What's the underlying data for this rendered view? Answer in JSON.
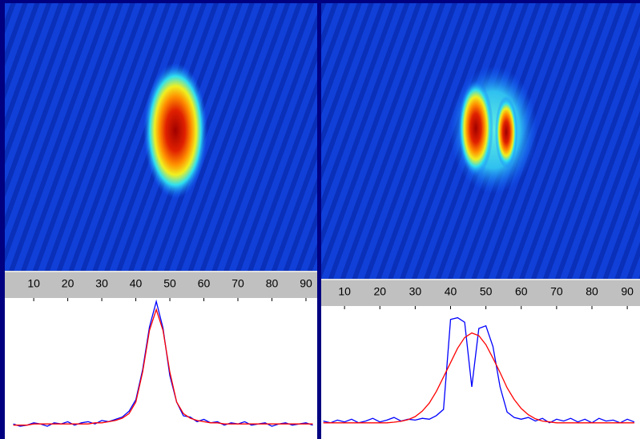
{
  "chart_data": [
    {
      "type": "line",
      "x": [
        4,
        6,
        8,
        10,
        12,
        14,
        16,
        18,
        20,
        22,
        24,
        26,
        28,
        30,
        32,
        34,
        36,
        38,
        40,
        42,
        44,
        46,
        48,
        50,
        52,
        54,
        56,
        58,
        60,
        62,
        64,
        66,
        68,
        70,
        72,
        74,
        76,
        78,
        80,
        82,
        84,
        86,
        88,
        90,
        92
      ],
      "series": [
        {
          "color": "#0000ff",
          "values": [
            0.01,
            -0.01,
            0,
            0.02,
            0.01,
            -0.01,
            0.02,
            0.01,
            0.03,
            0,
            0.02,
            0.03,
            0.01,
            0.04,
            0.03,
            0.05,
            0.07,
            0.12,
            0.22,
            0.48,
            0.85,
            1.07,
            0.84,
            0.43,
            0.2,
            0.08,
            0.07,
            0.03,
            0.05,
            0.02,
            0.03,
            0,
            0.02,
            0.01,
            0.03,
            0,
            0.01,
            0.02,
            -0.01,
            0.01,
            0.02,
            0,
            0.01,
            0.02,
            0
          ]
        },
        {
          "color": "#ff0000",
          "values": [
            0,
            0,
            0,
            0.01,
            0.01,
            0.01,
            0.01,
            0.01,
            0.01,
            0.01,
            0.01,
            0.01,
            0.02,
            0.02,
            0.03,
            0.04,
            0.06,
            0.1,
            0.2,
            0.46,
            0.82,
            1.0,
            0.82,
            0.46,
            0.2,
            0.1,
            0.06,
            0.04,
            0.03,
            0.02,
            0.02,
            0.01,
            0.01,
            0.01,
            0.01,
            0.01,
            0.01,
            0.01,
            0.01,
            0.01,
            0.01,
            0.01,
            0.01,
            0.01,
            0.01
          ]
        }
      ],
      "xlim": [
        1.5,
        93.3
      ],
      "xticks": [
        10,
        20,
        30,
        40,
        50,
        60,
        70,
        80,
        90
      ],
      "ylim": [
        -0.12,
        1.1
      ]
    },
    {
      "type": "line",
      "x": [
        4,
        6,
        8,
        10,
        12,
        14,
        16,
        18,
        20,
        22,
        24,
        26,
        28,
        30,
        32,
        34,
        36,
        38,
        40,
        42,
        44,
        46,
        48,
        50,
        52,
        54,
        56,
        58,
        60,
        62,
        64,
        66,
        68,
        70,
        72,
        74,
        76,
        78,
        80,
        82,
        84,
        86,
        88,
        90,
        92
      ],
      "series": [
        {
          "color": "#0000ff",
          "values": [
            0.02,
            0,
            0.03,
            0.01,
            0.04,
            0,
            0.02,
            0.05,
            0.01,
            0.03,
            0.06,
            0.02,
            0.04,
            0.03,
            0.05,
            0.04,
            0.08,
            0.15,
            1.15,
            1.17,
            1.12,
            0.4,
            1.05,
            1.08,
            0.85,
            0.4,
            0.12,
            0.06,
            0.04,
            0.06,
            0.02,
            0.05,
            0,
            0.04,
            0.02,
            0.05,
            0.01,
            0.04,
            0,
            0.05,
            0.02,
            0.03,
            0,
            0.04,
            0.01
          ]
        },
        {
          "color": "#ff0000",
          "values": [
            0,
            0,
            0,
            0,
            0,
            0,
            0,
            0,
            0,
            0,
            0.007,
            0.017,
            0.036,
            0.07,
            0.13,
            0.22,
            0.35,
            0.51,
            0.67,
            0.83,
            0.95,
            1.0,
            0.97,
            0.87,
            0.72,
            0.56,
            0.39,
            0.26,
            0.16,
            0.09,
            0.045,
            0.02,
            0.01,
            0,
            0,
            0,
            0,
            0,
            0,
            0,
            0,
            0,
            0,
            0,
            0
          ]
        }
      ],
      "xlim": [
        3.4,
        93.6
      ],
      "xticks": [
        10,
        20,
        30,
        40,
        50,
        60,
        70,
        80,
        90
      ],
      "ylim": [
        -0.18,
        1.3
      ]
    }
  ]
}
